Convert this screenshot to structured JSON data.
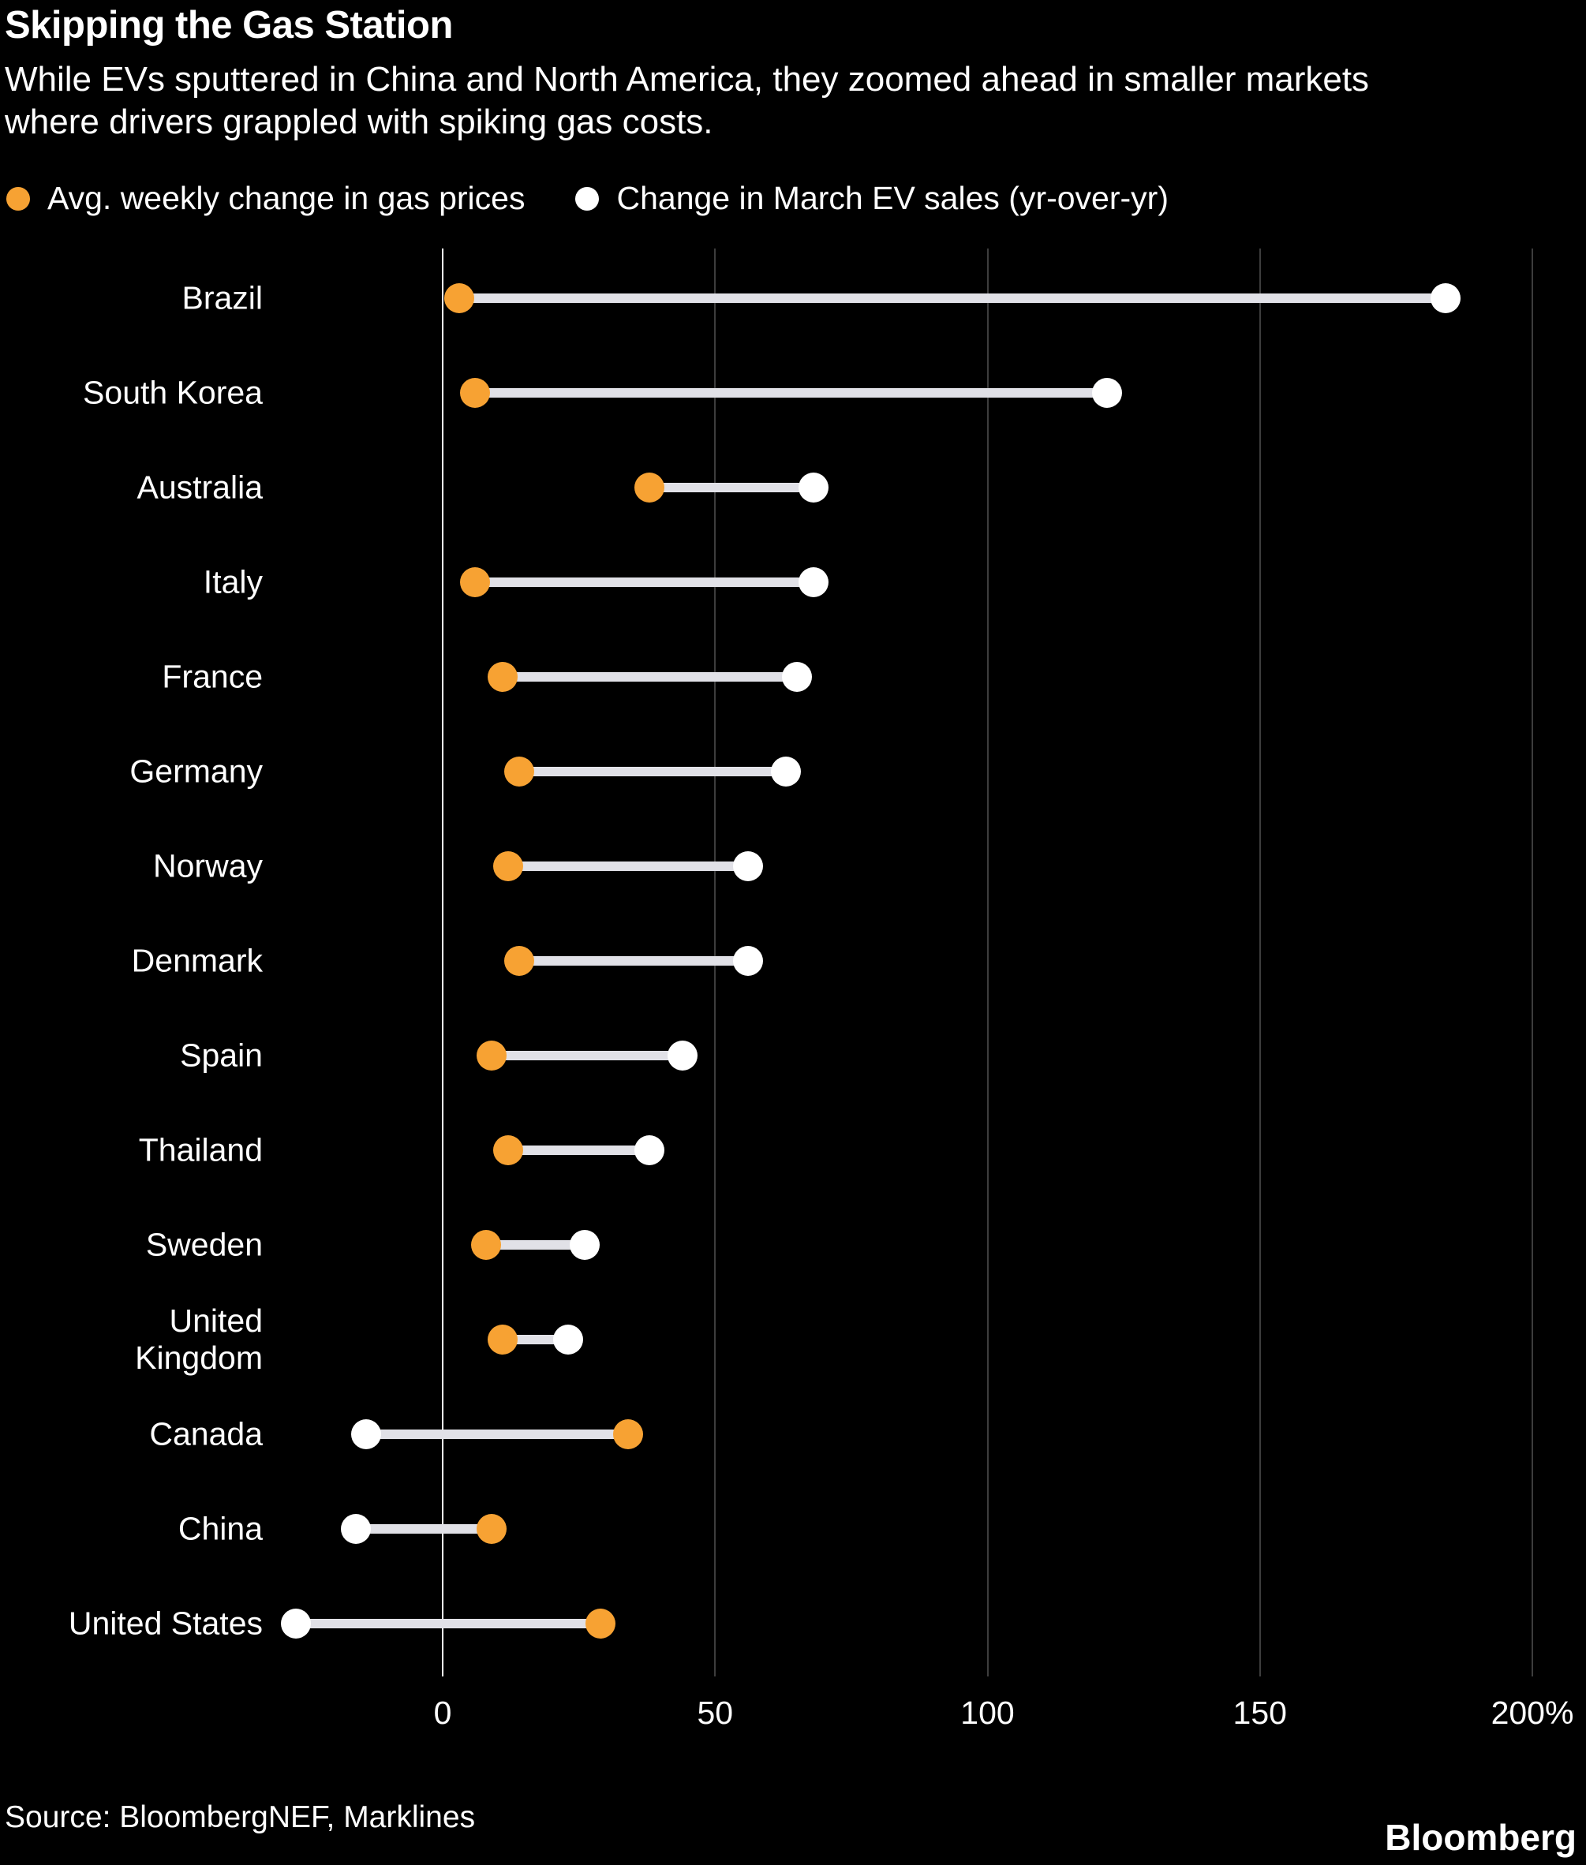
{
  "header": {
    "title": "Skipping the Gas Station",
    "subtitle": "While EVs sputtered in China and North America, they zoomed ahead in smaller markets where drivers grappled with spiking gas costs."
  },
  "legend": [
    {
      "label": "Avg. weekly change in gas prices",
      "color": "#f7a233"
    },
    {
      "label": "Change in March EV sales (yr-over-yr)",
      "color": "#ffffff"
    }
  ],
  "chart_data": {
    "type": "dumbbell",
    "orientation": "horizontal",
    "categories": [
      "Brazil",
      "South Korea",
      "Australia",
      "Italy",
      "France",
      "Germany",
      "Norway",
      "Denmark",
      "Spain",
      "Thailand",
      "Sweden",
      "United Kingdom",
      "Canada",
      "China",
      "United States"
    ],
    "series": [
      {
        "name": "Avg. weekly change in gas prices",
        "color": "#f7a233",
        "values": [
          3,
          6,
          38,
          6,
          11,
          14,
          12,
          14,
          9,
          12,
          8,
          11,
          34,
          9,
          29
        ]
      },
      {
        "name": "Change in March EV sales (yr-over-yr)",
        "color": "#ffffff",
        "values": [
          184,
          122,
          68,
          68,
          65,
          63,
          56,
          56,
          44,
          38,
          26,
          23,
          -14,
          -16,
          -27
        ]
      }
    ],
    "unit": "%",
    "xticks": [
      0,
      50,
      100,
      150,
      200
    ],
    "xtick_labels": [
      "0",
      "50",
      "100",
      "150",
      "200%"
    ],
    "xlim": [
      -30,
      205
    ],
    "grid": "vertical",
    "zero_line": true,
    "connector_color": "#e1e1e7",
    "background": "#000000",
    "legend_position": "top"
  },
  "footer": {
    "source": "Source: BloombergNEF, Marklines",
    "brand": "Bloomberg"
  }
}
